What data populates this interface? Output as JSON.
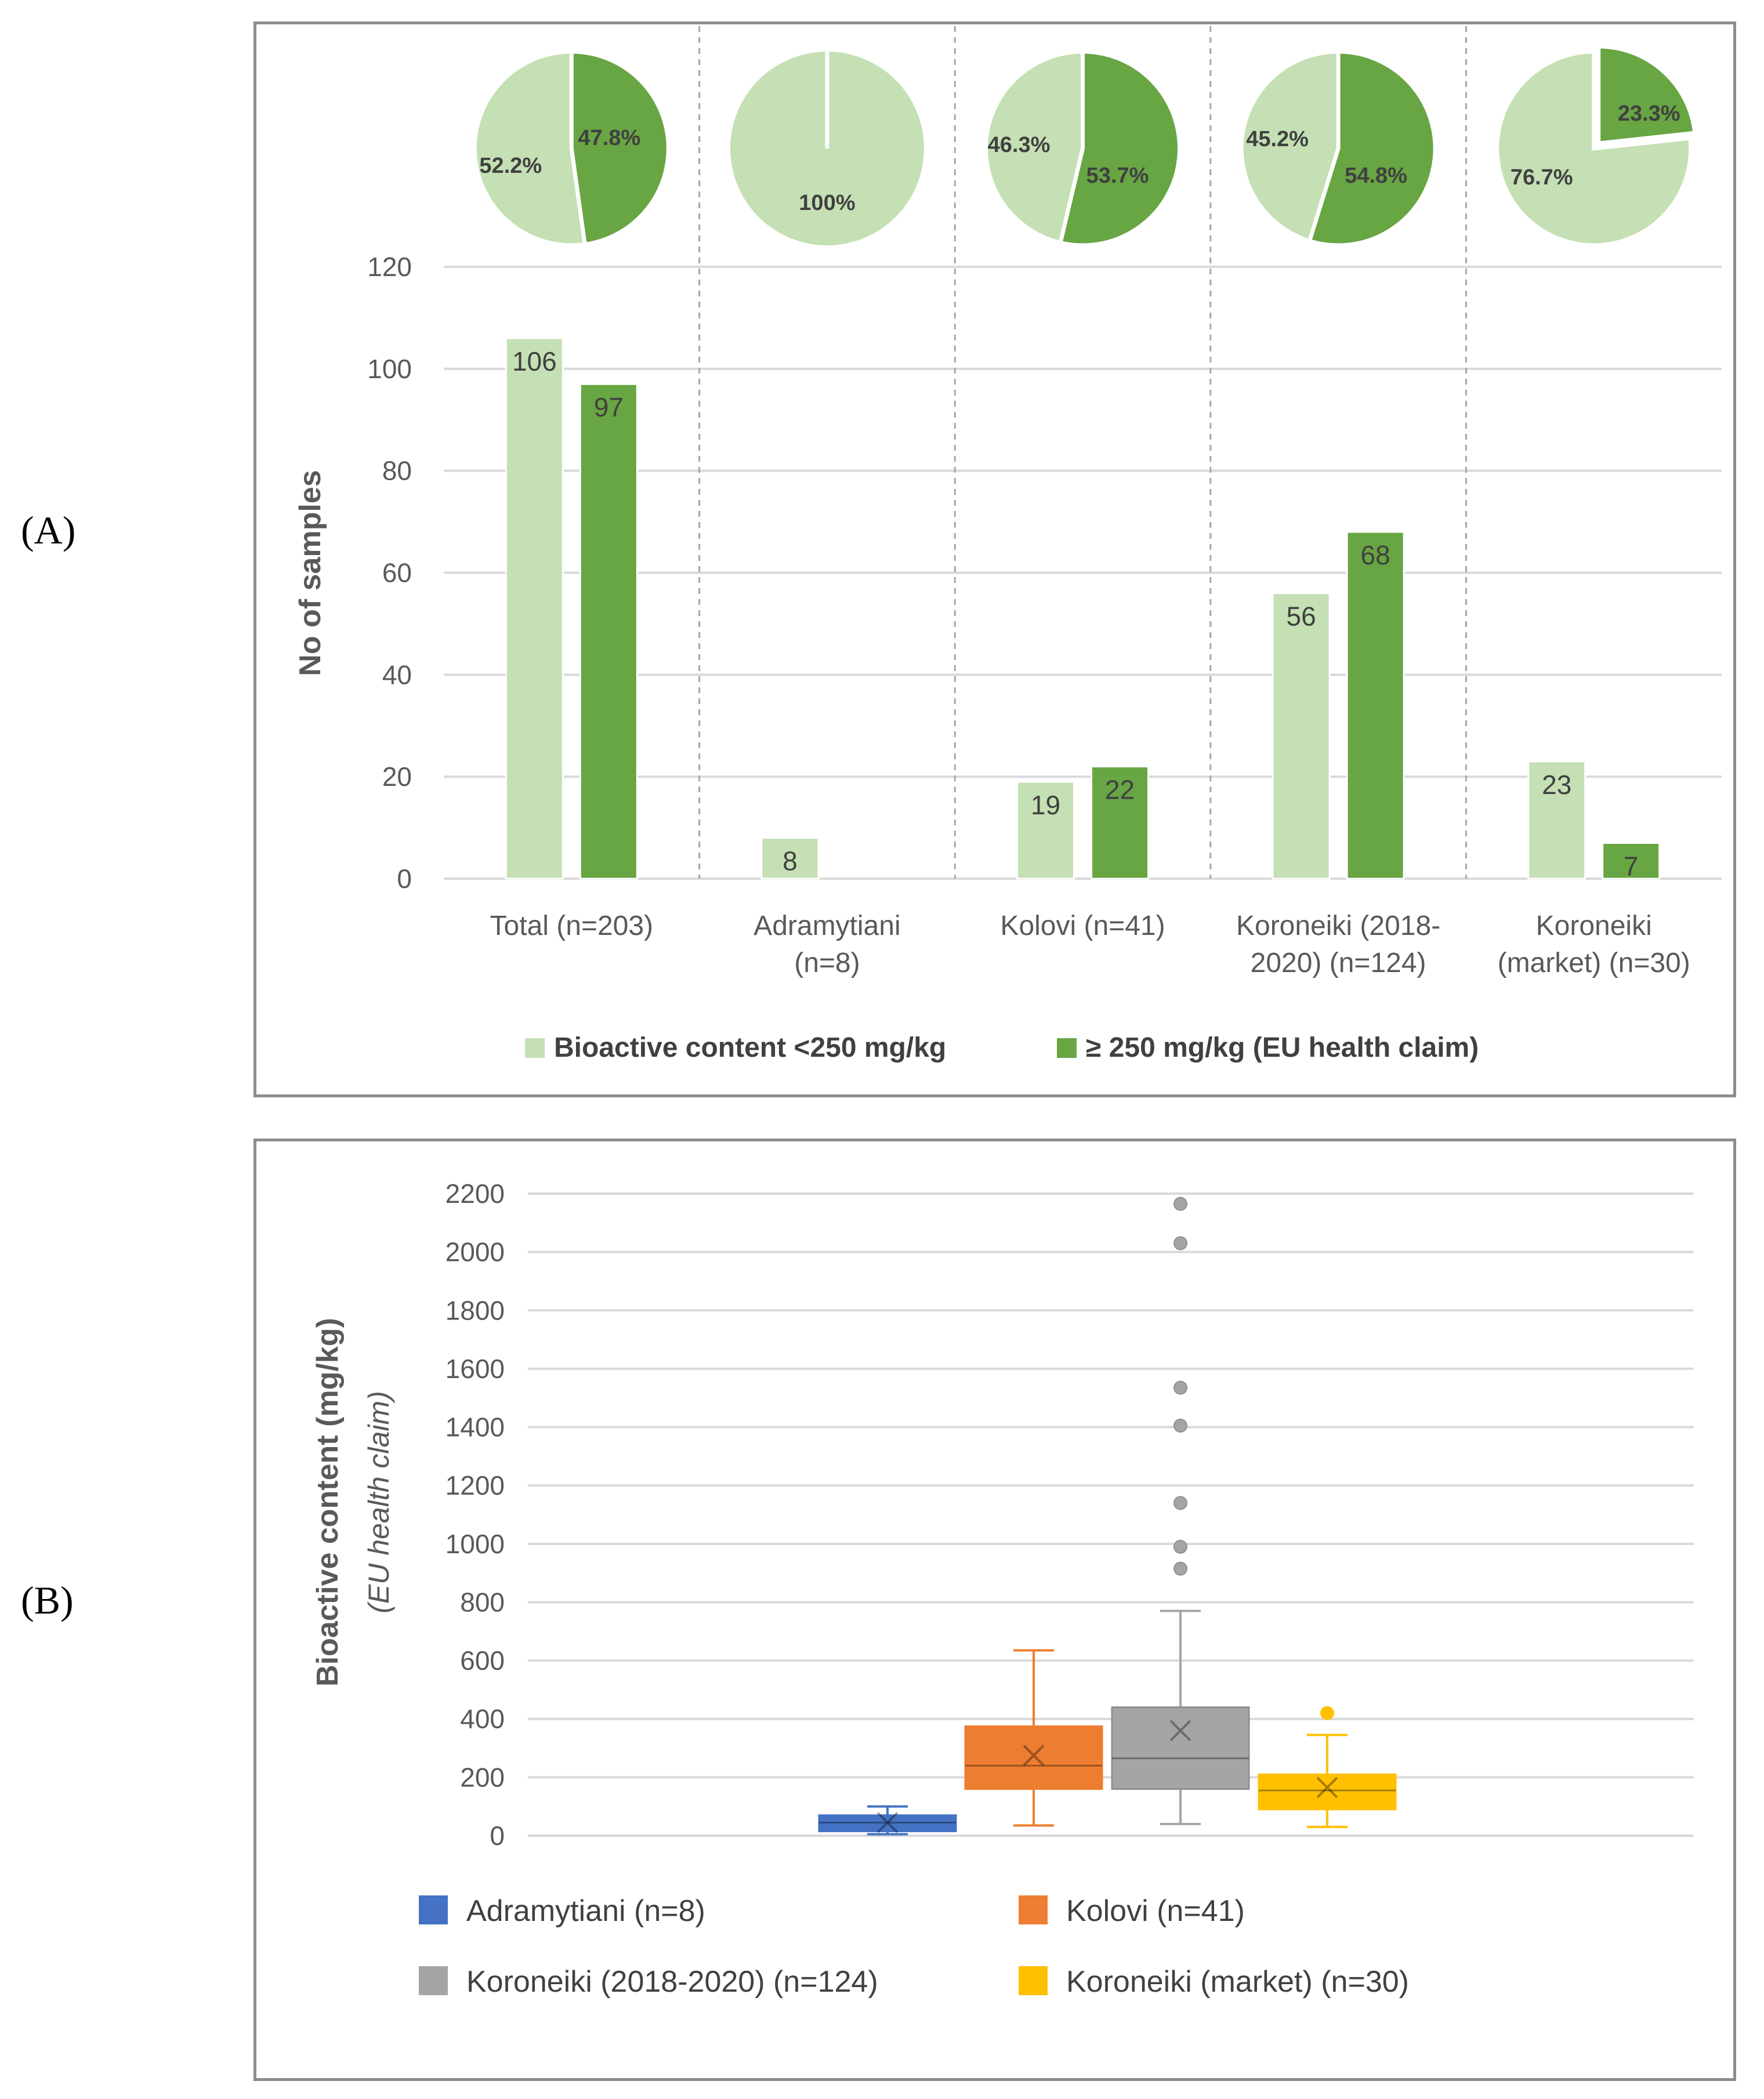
{
  "panel_labels": {
    "a": "(A)",
    "b": "(B)"
  },
  "chart_data": [
    {
      "type": "bar",
      "title": "",
      "xlabel": "",
      "ylabel": "No of samples",
      "ylim": [
        0,
        120
      ],
      "yticks": [
        0,
        20,
        40,
        60,
        80,
        100,
        120
      ],
      "grid": true,
      "legend_position": "bottom",
      "categories": [
        [
          "Total (n=203)"
        ],
        [
          "Adramytiani",
          "(n=8)"
        ],
        [
          "Kolovi (n=41)"
        ],
        [
          "Koroneiki (2018-",
          "2020) (n=124)"
        ],
        [
          "Koroneiki",
          "(market) (n=30)"
        ]
      ],
      "series": [
        {
          "name": "Bioactive content <250 mg/kg",
          "color": "#c5e0b4",
          "values": [
            106,
            8,
            19,
            56,
            23
          ]
        },
        {
          "name": "≥ 250 mg/kg (EU health claim)",
          "color": "#68a543",
          "values": [
            97,
            0,
            22,
            68,
            7
          ]
        }
      ],
      "data_labels": [
        [
          "106",
          "8",
          "19",
          "56",
          "23"
        ],
        [
          "97",
          "",
          "22",
          "68",
          "7"
        ]
      ],
      "pies": [
        {
          "slices": [
            52.2,
            47.8
          ],
          "labels": [
            "52.2%",
            "47.8%"
          ]
        },
        {
          "slices": [
            100,
            0
          ],
          "labels": [
            "100%",
            ""
          ]
        },
        {
          "slices": [
            46.3,
            53.7
          ],
          "labels": [
            "46.3%",
            "53.7%"
          ]
        },
        {
          "slices": [
            45.2,
            54.8
          ],
          "labels": [
            "45.2%",
            "54.8%"
          ]
        },
        {
          "slices": [
            76.7,
            23.3
          ],
          "labels": [
            "76.7%",
            "23.3%"
          ]
        }
      ]
    },
    {
      "type": "box",
      "title": "",
      "xlabel": "",
      "ylabel": "Bioactive content (mg/kg)",
      "ylabel2": "(EU health claim)",
      "ylim": [
        0,
        2200
      ],
      "yticks": [
        0,
        200,
        400,
        600,
        800,
        1000,
        1200,
        1400,
        1600,
        1800,
        2000,
        2200
      ],
      "grid": true,
      "legend_position": "bottom",
      "series": [
        {
          "name": "Adramytiani (n=8)",
          "color": "#4472c4",
          "min": 5,
          "q1": 15,
          "median": 45,
          "q3": 70,
          "max": 100,
          "mean": 45,
          "outliers": []
        },
        {
          "name": "Kolovi (n=41)",
          "color": "#ed7d31",
          "min": 35,
          "q1": 160,
          "median": 240,
          "q3": 375,
          "max": 635,
          "mean": 275,
          "outliers": []
        },
        {
          "name": "Koroneiki (2018-2020) (n=124)",
          "color": "#a5a5a5",
          "min": 40,
          "q1": 160,
          "median": 265,
          "q3": 440,
          "max": 770,
          "mean": 360,
          "outliers": [
            915,
            990,
            1140,
            1405,
            1535,
            2030,
            2165
          ]
        },
        {
          "name": "Koroneiki (market) (n=30)",
          "color": "#ffc000",
          "min": 30,
          "q1": 90,
          "median": 155,
          "q3": 210,
          "max": 345,
          "mean": 165,
          "outliers": [
            420
          ]
        }
      ]
    }
  ]
}
